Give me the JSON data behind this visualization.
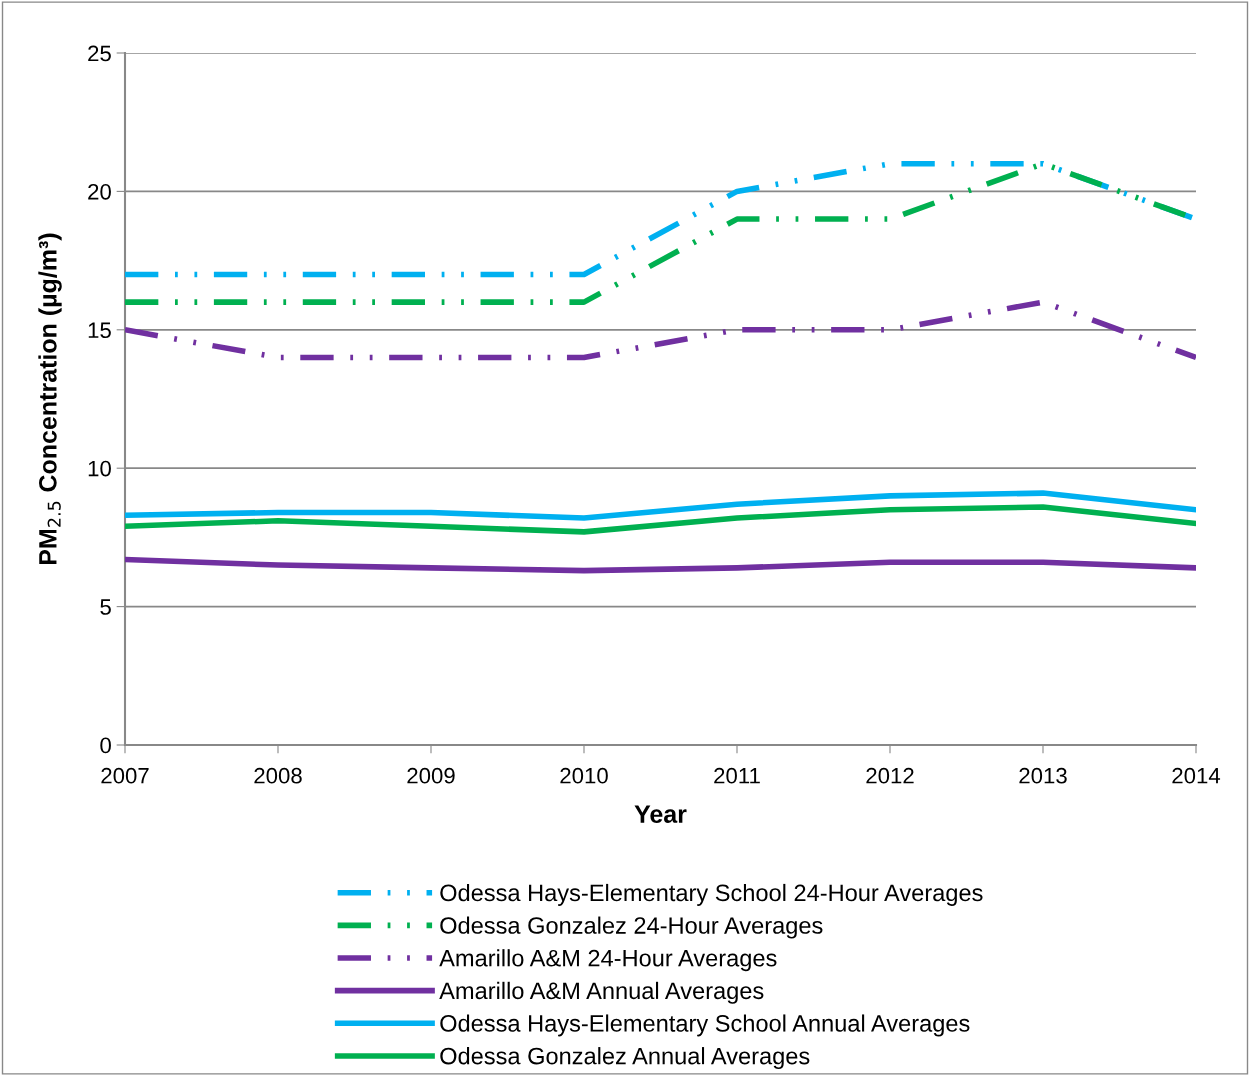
{
  "chart_data": {
    "type": "line",
    "xlabel": "Year",
    "ylabel": "PM$_{2.5}$ Concentration (µg/m³)",
    "x": [
      2007,
      2008,
      2009,
      2010,
      2011,
      2012,
      2013,
      2014
    ],
    "xlim": [
      2007,
      2014
    ],
    "xticks": [
      2007,
      2008,
      2009,
      2010,
      2011,
      2012,
      2013,
      2014
    ],
    "ylim": [
      0,
      25
    ],
    "yticks": [
      0,
      5,
      10,
      15,
      20,
      25
    ],
    "grid": "y",
    "legend": "bottom",
    "marker": "none",
    "series": [
      {
        "name": "Odessa Hays-Elementary School 24-Hour Averages",
        "color": "#00b0f0",
        "line_style": "dashed",
        "values": [
          17,
          17,
          17,
          17,
          20,
          21,
          21,
          19
        ]
      },
      {
        "name": "Odessa Gonzalez 24-Hour Averages",
        "color": "#00b050",
        "line_style": "dashed",
        "values": [
          16,
          16,
          16,
          16,
          19,
          19,
          21,
          19
        ]
      },
      {
        "name": "Amarillo A&M 24-Hour Averages",
        "color": "#7030a0",
        "line_style": "dashed",
        "values": [
          15,
          14,
          14,
          14,
          15,
          15,
          16,
          14
        ]
      },
      {
        "name": "Amarillo A&M Annual Averages",
        "color": "#7030a0",
        "line_style": "solid",
        "values": [
          6.7,
          6.5,
          6.4,
          6.3,
          6.4,
          6.6,
          6.6,
          6.4
        ]
      },
      {
        "name": "Odessa Hays-Elementary School Annual Averages",
        "color": "#00b0f0",
        "line_style": "solid",
        "values": [
          8.3,
          8.4,
          8.4,
          8.2,
          8.7,
          9.0,
          9.1,
          8.5
        ]
      },
      {
        "name": "Odessa Gonzalez Annual Averages",
        "color": "#00b050",
        "line_style": "solid",
        "values": [
          7.9,
          8.1,
          7.9,
          7.7,
          8.2,
          8.5,
          8.6,
          8.0
        ]
      }
    ]
  }
}
